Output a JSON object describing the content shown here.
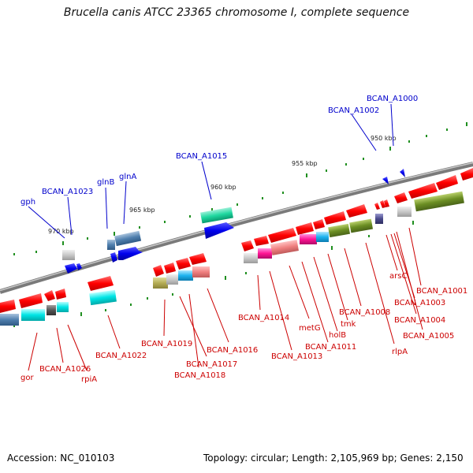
{
  "header": {
    "title": "Brucella canis ATCC 23365 chromosome I, complete sequence"
  },
  "footer": {
    "accession": "Accession: NC_010103",
    "topology": "Topology: circular; Length: 2,105,969 bp; Genes: 2,150"
  },
  "colors": {
    "forward_label": "#0000cc",
    "reverse_label": "#cc0000",
    "backbone": "#808080",
    "tick": "#1f8f1f"
  },
  "ticks": [
    "970 kbp",
    "965 kbp",
    "960 kbp",
    "955 kbp",
    "950 kbp"
  ],
  "forward_labels": [
    "gph",
    "BCAN_A1023",
    "glnB",
    "glnA",
    "BCAN_A1015",
    "BCAN_A1002",
    "BCAN_A1000"
  ],
  "reverse_labels": [
    "gor",
    "BCAN_A1026",
    "rpiA",
    "BCAN_A1022",
    "BCAN_A1019",
    "BCAN_A1017",
    "BCAN_A1018",
    "BCAN_A1016",
    "BCAN_A1014",
    "BCAN_A1013",
    "metG",
    "BCAN_A1011",
    "holB",
    "tmk",
    "BCAN_A1008",
    "rlpA",
    "arsC",
    "BCAN_A1001",
    "BCAN_A1003",
    "BCAN_A1004",
    "BCAN_A1005"
  ]
}
